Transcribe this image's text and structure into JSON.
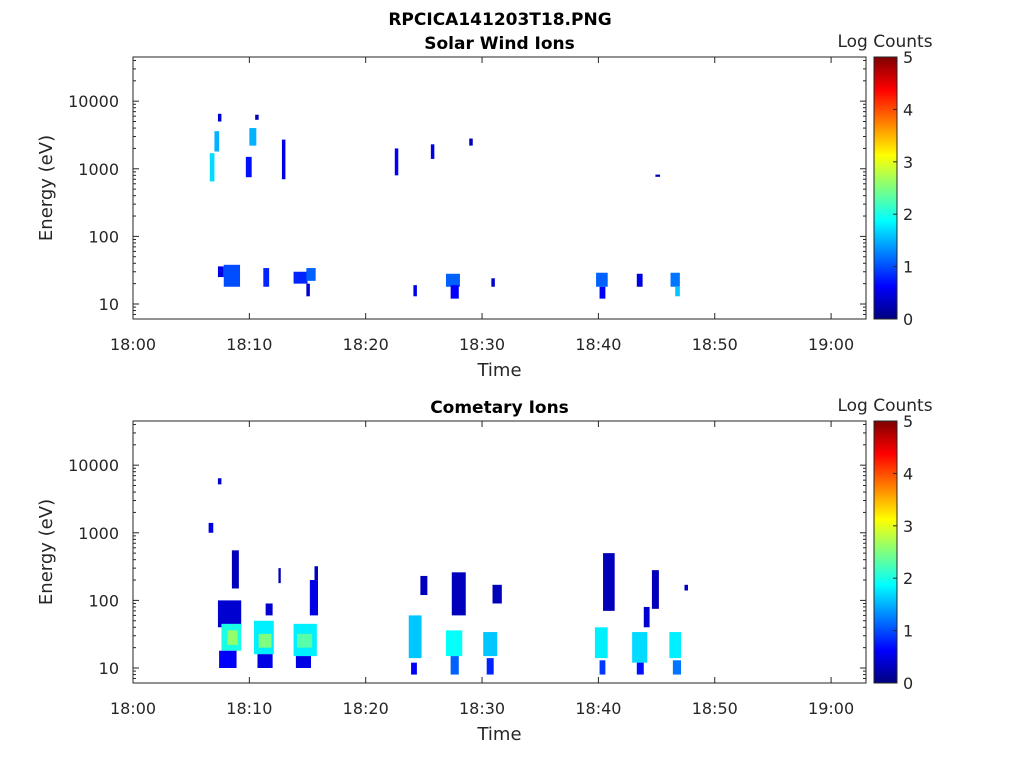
{
  "figure_title": "RPCICA141203T18.PNG",
  "colormap": [
    "#00007F",
    "#0000FF",
    "#007FFF",
    "#00FFFF",
    "#7FFF7F",
    "#FFFF00",
    "#FF7F00",
    "#FF0000",
    "#7F0000"
  ],
  "chart_data": [
    {
      "type": "heatmap",
      "title": "Solar Wind Ions",
      "xlabel": "Time",
      "ylabel": "Energy (eV)",
      "x_ticks": [
        "18:00",
        "18:10",
        "18:20",
        "18:30",
        "18:40",
        "18:50",
        "19:00"
      ],
      "x_range_min": [
        0,
        63
      ],
      "y_ticks": [
        "10",
        "100",
        "1000",
        "10000"
      ],
      "y_scale": "log",
      "y_range_eV": [
        6,
        45000
      ],
      "colorbar": {
        "label": "Log Counts",
        "ticks": [
          "0",
          "1",
          "2",
          "3",
          "4",
          "5"
        ],
        "range": [
          0,
          5
        ]
      },
      "cells": [
        {
          "t": [
            6.6,
            7.0
          ],
          "e": [
            650,
            1700
          ],
          "v": 1.7
        },
        {
          "t": [
            7.0,
            7.4
          ],
          "e": [
            1800,
            3600
          ],
          "v": 1.5
        },
        {
          "t": [
            7.3,
            7.6
          ],
          "e": [
            5000,
            6500
          ],
          "v": 0.4
        },
        {
          "t": [
            9.7,
            10.2
          ],
          "e": [
            750,
            1500
          ],
          "v": 0.7
        },
        {
          "t": [
            10.0,
            10.6
          ],
          "e": [
            2200,
            4000
          ],
          "v": 1.5
        },
        {
          "t": [
            10.5,
            10.8
          ],
          "e": [
            5300,
            6300
          ],
          "v": 0.3
        },
        {
          "t": [
            12.8,
            13.1
          ],
          "e": [
            700,
            2700
          ],
          "v": 0.5
        },
        {
          "t": [
            22.5,
            22.8
          ],
          "e": [
            800,
            2000
          ],
          "v": 0.6
        },
        {
          "t": [
            25.6,
            25.9
          ],
          "e": [
            1400,
            2300
          ],
          "v": 0.5
        },
        {
          "t": [
            28.9,
            29.2
          ],
          "e": [
            2200,
            2800
          ],
          "v": 0.3
        },
        {
          "t": [
            44.9,
            45.3
          ],
          "e": [
            760,
            820
          ],
          "v": 0.3
        },
        {
          "t": [
            7.3,
            7.8
          ],
          "e": [
            25,
            36
          ],
          "v": 0.5
        },
        {
          "t": [
            7.8,
            9.2
          ],
          "e": [
            18,
            38
          ],
          "v": 1.0
        },
        {
          "t": [
            11.2,
            11.7
          ],
          "e": [
            18,
            34
          ],
          "v": 0.8
        },
        {
          "t": [
            13.8,
            15.0
          ],
          "e": [
            20,
            30
          ],
          "v": 0.8
        },
        {
          "t": [
            14.9,
            15.7
          ],
          "e": [
            22,
            34
          ],
          "v": 1.1
        },
        {
          "t": [
            14.9,
            15.2
          ],
          "e": [
            13,
            20
          ],
          "v": 0.4
        },
        {
          "t": [
            24.1,
            24.4
          ],
          "e": [
            13,
            19
          ],
          "v": 0.5
        },
        {
          "t": [
            26.9,
            28.1
          ],
          "e": [
            18,
            28
          ],
          "v": 1.1
        },
        {
          "t": [
            27.3,
            28.0
          ],
          "e": [
            12,
            19
          ],
          "v": 0.6
        },
        {
          "t": [
            30.8,
            31.1
          ],
          "e": [
            18,
            24
          ],
          "v": 0.4
        },
        {
          "t": [
            39.8,
            40.8
          ],
          "e": [
            18,
            29
          ],
          "v": 1.1
        },
        {
          "t": [
            40.1,
            40.6
          ],
          "e": [
            12,
            18
          ],
          "v": 0.6
        },
        {
          "t": [
            43.3,
            43.8
          ],
          "e": [
            18,
            28
          ],
          "v": 0.5
        },
        {
          "t": [
            46.2,
            47.0
          ],
          "e": [
            18,
            29
          ],
          "v": 1.2
        },
        {
          "t": [
            46.6,
            47.0
          ],
          "e": [
            13,
            18
          ],
          "v": 1.6
        }
      ]
    },
    {
      "type": "heatmap",
      "title": "Cometary Ions",
      "xlabel": "Time",
      "ylabel": "Energy (eV)",
      "x_ticks": [
        "18:00",
        "18:10",
        "18:20",
        "18:30",
        "18:40",
        "18:50",
        "19:00"
      ],
      "x_range_min": [
        0,
        63
      ],
      "y_ticks": [
        "10",
        "100",
        "1000",
        "10000"
      ],
      "y_scale": "log",
      "y_range_eV": [
        6,
        45000
      ],
      "colorbar": {
        "label": "Log Counts",
        "ticks": [
          "0",
          "1",
          "2",
          "3",
          "4",
          "5"
        ],
        "range": [
          0,
          5
        ]
      },
      "cells": [
        {
          "t": [
            6.5,
            6.9
          ],
          "e": [
            1000,
            1400
          ],
          "v": 0.5
        },
        {
          "t": [
            7.3,
            7.6
          ],
          "e": [
            5200,
            6400
          ],
          "v": 0.4
        },
        {
          "t": [
            7.3,
            9.3
          ],
          "e": [
            40,
            100
          ],
          "v": 0.4
        },
        {
          "t": [
            7.6,
            9.3
          ],
          "e": [
            18,
            45
          ],
          "v": 2.0
        },
        {
          "t": [
            8.1,
            9.0
          ],
          "e": [
            22,
            36
          ],
          "v": 2.6
        },
        {
          "t": [
            7.4,
            8.9
          ],
          "e": [
            10,
            18
          ],
          "v": 0.6
        },
        {
          "t": [
            8.5,
            9.1
          ],
          "e": [
            150,
            550
          ],
          "v": 0.3
        },
        {
          "t": [
            10.4,
            12.1
          ],
          "e": [
            16,
            50
          ],
          "v": 1.8
        },
        {
          "t": [
            10.8,
            11.9
          ],
          "e": [
            20,
            32
          ],
          "v": 2.5
        },
        {
          "t": [
            10.7,
            12.0
          ],
          "e": [
            10,
            16
          ],
          "v": 0.5
        },
        {
          "t": [
            11.4,
            12.0
          ],
          "e": [
            60,
            90
          ],
          "v": 0.4
        },
        {
          "t": [
            12.5,
            12.7
          ],
          "e": [
            180,
            300
          ],
          "v": 0.3
        },
        {
          "t": [
            13.8,
            15.8
          ],
          "e": [
            15,
            45
          ],
          "v": 1.8
        },
        {
          "t": [
            14.1,
            15.4
          ],
          "e": [
            20,
            32
          ],
          "v": 2.3
        },
        {
          "t": [
            14.0,
            15.3
          ],
          "e": [
            10,
            15
          ],
          "v": 0.5
        },
        {
          "t": [
            15.2,
            15.9
          ],
          "e": [
            60,
            200
          ],
          "v": 0.5
        },
        {
          "t": [
            15.6,
            15.9
          ],
          "e": [
            200,
            320
          ],
          "v": 0.3
        },
        {
          "t": [
            23.7,
            24.8
          ],
          "e": [
            14,
            60
          ],
          "v": 1.6
        },
        {
          "t": [
            23.9,
            24.4
          ],
          "e": [
            8,
            12
          ],
          "v": 0.6
        },
        {
          "t": [
            24.7,
            25.3
          ],
          "e": [
            120,
            230
          ],
          "v": 0.3
        },
        {
          "t": [
            26.9,
            28.3
          ],
          "e": [
            15,
            36
          ],
          "v": 1.9
        },
        {
          "t": [
            27.3,
            28.0
          ],
          "e": [
            8,
            15
          ],
          "v": 1.1
        },
        {
          "t": [
            27.4,
            28.6
          ],
          "e": [
            60,
            260
          ],
          "v": 0.3
        },
        {
          "t": [
            30.1,
            31.3
          ],
          "e": [
            15,
            34
          ],
          "v": 1.6
        },
        {
          "t": [
            30.4,
            31.0
          ],
          "e": [
            8,
            14
          ],
          "v": 0.8
        },
        {
          "t": [
            30.9,
            31.7
          ],
          "e": [
            90,
            170
          ],
          "v": 0.3
        },
        {
          "t": [
            39.7,
            40.8
          ],
          "e": [
            14,
            40
          ],
          "v": 1.8
        },
        {
          "t": [
            40.1,
            40.6
          ],
          "e": [
            8,
            13
          ],
          "v": 0.9
        },
        {
          "t": [
            40.4,
            41.4
          ],
          "e": [
            70,
            500
          ],
          "v": 0.3
        },
        {
          "t": [
            42.9,
            44.2
          ],
          "e": [
            12,
            34
          ],
          "v": 1.7
        },
        {
          "t": [
            43.3,
            43.9
          ],
          "e": [
            8,
            12
          ],
          "v": 0.7
        },
        {
          "t": [
            43.9,
            44.4
          ],
          "e": [
            40,
            80
          ],
          "v": 0.4
        },
        {
          "t": [
            44.6,
            45.2
          ],
          "e": [
            75,
            280
          ],
          "v": 0.3
        },
        {
          "t": [
            46.1,
            47.1
          ],
          "e": [
            14,
            34
          ],
          "v": 1.8
        },
        {
          "t": [
            46.4,
            47.1
          ],
          "e": [
            8,
            13
          ],
          "v": 1.2
        },
        {
          "t": [
            47.4,
            47.7
          ],
          "e": [
            140,
            170
          ],
          "v": 0.3
        }
      ]
    }
  ]
}
